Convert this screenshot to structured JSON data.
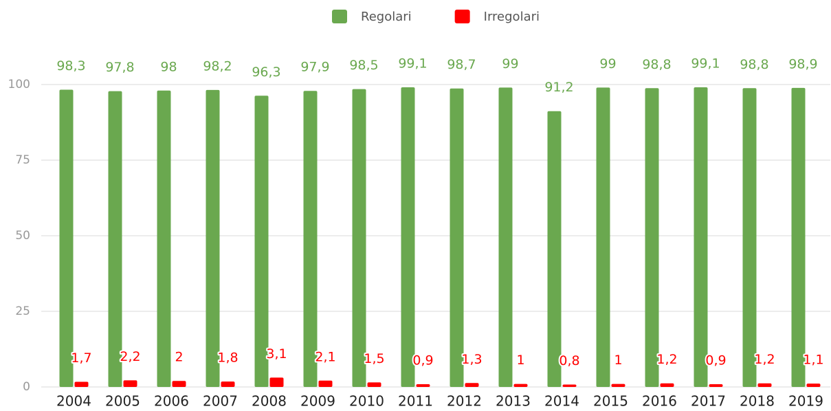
{
  "chart_data": {
    "type": "bar",
    "categories": [
      "2004",
      "2005",
      "2006",
      "2007",
      "2008",
      "2009",
      "2010",
      "2011",
      "2012",
      "2013",
      "2014",
      "2015",
      "2016",
      "2017",
      "2018",
      "2019"
    ],
    "series": [
      {
        "name": "Regolari",
        "color": "#6aa84f",
        "values": [
          98.3,
          97.8,
          98,
          98.2,
          96.3,
          97.9,
          98.5,
          99.1,
          98.7,
          99,
          91.2,
          99,
          98.8,
          99.1,
          98.8,
          98.9
        ],
        "value_labels": [
          "98,3",
          "97,8",
          "98",
          "98,2",
          "96,3",
          "97,9",
          "98,5",
          "99,1",
          "98,7",
          "99",
          "91,2",
          "99",
          "98,8",
          "99,1",
          "98,8",
          "98,9"
        ]
      },
      {
        "name": "Irregolari",
        "color": "#ff0000",
        "values": [
          1.7,
          2.2,
          2,
          1.8,
          3.1,
          2.1,
          1.5,
          0.9,
          1.3,
          1,
          0.8,
          1,
          1.2,
          0.9,
          1.2,
          1.1
        ],
        "value_labels": [
          "1,7",
          "2,2",
          "2",
          "1,8",
          "3,1",
          "2,1",
          "1,5",
          "0,9",
          "1,3",
          "1",
          "0,8",
          "1",
          "1,2",
          "0,9",
          "1,2",
          "1,1"
        ]
      }
    ],
    "ylim": [
      0,
      100
    ],
    "yticks": [
      0,
      25,
      50,
      75,
      100
    ],
    "grid": true,
    "legend": "top"
  }
}
